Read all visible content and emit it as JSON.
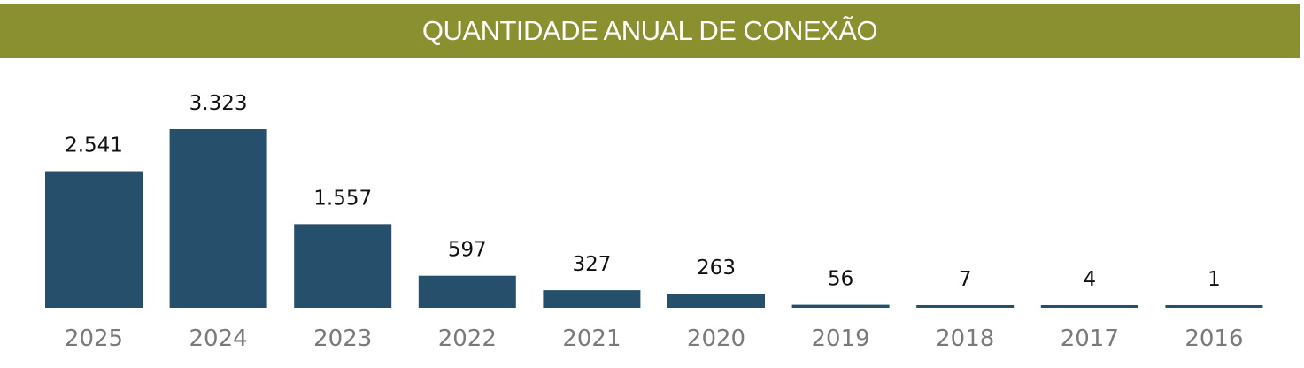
{
  "chart_data": {
    "type": "bar",
    "title": "QUANTIDADE ANUAL DE CONEXÃO",
    "categories": [
      "2025",
      "2024",
      "2023",
      "2022",
      "2021",
      "2020",
      "2019",
      "2018",
      "2017",
      "2016"
    ],
    "values": [
      2541,
      3323,
      1557,
      597,
      327,
      263,
      56,
      7,
      4,
      1
    ],
    "value_labels": [
      "2.541",
      "3.323",
      "1.557",
      "597",
      "327",
      "263",
      "56",
      "7",
      "4",
      "1"
    ],
    "xlabel": "",
    "ylabel": "",
    "ylim": [
      0,
      3323
    ],
    "grid": false,
    "colors": {
      "bar": "#264f6b",
      "title_bg": "#8a8f2f"
    }
  }
}
